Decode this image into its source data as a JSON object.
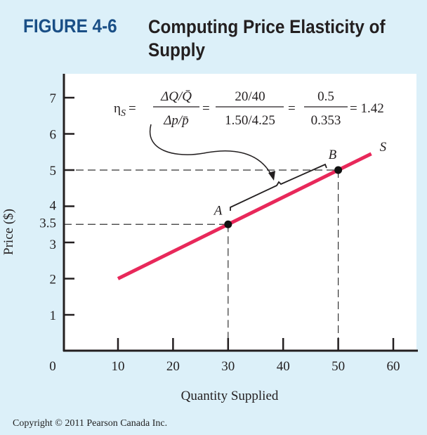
{
  "figure": {
    "label": "FIGURE 4-6",
    "title": "Computing Price Elasticity of Supply"
  },
  "copyright": "Copyright © 2011 Pearson Canada Inc.",
  "colors": {
    "background": "#dcf0f9",
    "plot_bg": "#ffffff",
    "supply_line": "#e8285a",
    "label_blue": "#1a4f86"
  },
  "formula": {
    "symbol": "η",
    "subscript": "S",
    "eq": "=",
    "num1": "ΔQ/Q̄",
    "den1": "Δp/p̄",
    "num2": "20/40",
    "den2": "1.50/4.25",
    "num3": "0.5",
    "den3": "0.353",
    "result": "= 1.42"
  },
  "chart_data": {
    "type": "line",
    "title": "Computing Price Elasticity of Supply",
    "xlabel": "Quantity Supplied",
    "ylabel": "Price ($)",
    "xlim": [
      0,
      60
    ],
    "ylim": [
      0,
      7.5
    ],
    "x_ticks": [
      "0",
      "10",
      "20",
      "30",
      "40",
      "50",
      "60"
    ],
    "y_ticks": [
      "1",
      "2",
      "3",
      "3.5",
      "4",
      "5",
      "6",
      "7"
    ],
    "grid": false,
    "series": [
      {
        "name": "S",
        "x": [
          10,
          56
        ],
        "y": [
          2,
          5.45
        ]
      }
    ],
    "points": [
      {
        "label": "A",
        "x": 30,
        "y": 3.5
      },
      {
        "label": "B",
        "x": 50,
        "y": 5
      }
    ]
  }
}
